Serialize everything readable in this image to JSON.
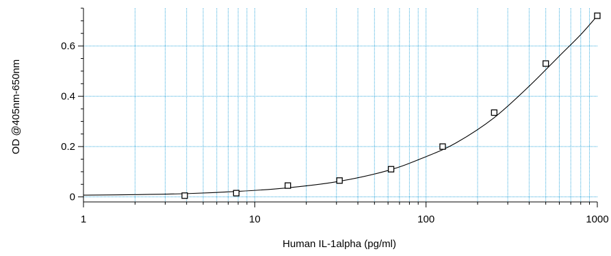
{
  "chart_data": {
    "type": "scatter",
    "title": "",
    "xlabel": "Human IL-1alpha (pg/ml)",
    "ylabel": "OD @405nm-650nm",
    "xscale": "log",
    "xlim": [
      1,
      1000
    ],
    "ylim": [
      -0.02,
      0.75
    ],
    "x_ticks": [
      1,
      10,
      100,
      1000
    ],
    "x_tick_labels": [
      "1",
      "10",
      "100",
      "1000"
    ],
    "y_ticks": [
      0,
      0.2,
      0.4,
      0.6
    ],
    "y_tick_labels": [
      "0",
      "0.2",
      "0.4",
      "0.6"
    ],
    "grid": true,
    "grid_color": "#33aadd",
    "series": [
      {
        "type": "scatter",
        "marker": "square",
        "x": [
          3.9,
          7.8,
          15.6,
          31.25,
          62.5,
          125,
          250,
          500,
          1000
        ],
        "y": [
          0.005,
          0.015,
          0.045,
          0.065,
          0.11,
          0.2,
          0.335,
          0.53,
          0.72
        ]
      },
      {
        "type": "line",
        "x": [
          1,
          2,
          4,
          8,
          15,
          30,
          60,
          100,
          150,
          250,
          400,
          600,
          800,
          1000
        ],
        "y": [
          0.007,
          0.009,
          0.013,
          0.022,
          0.035,
          0.06,
          0.105,
          0.16,
          0.215,
          0.315,
          0.44,
          0.56,
          0.645,
          0.72
        ]
      }
    ]
  }
}
